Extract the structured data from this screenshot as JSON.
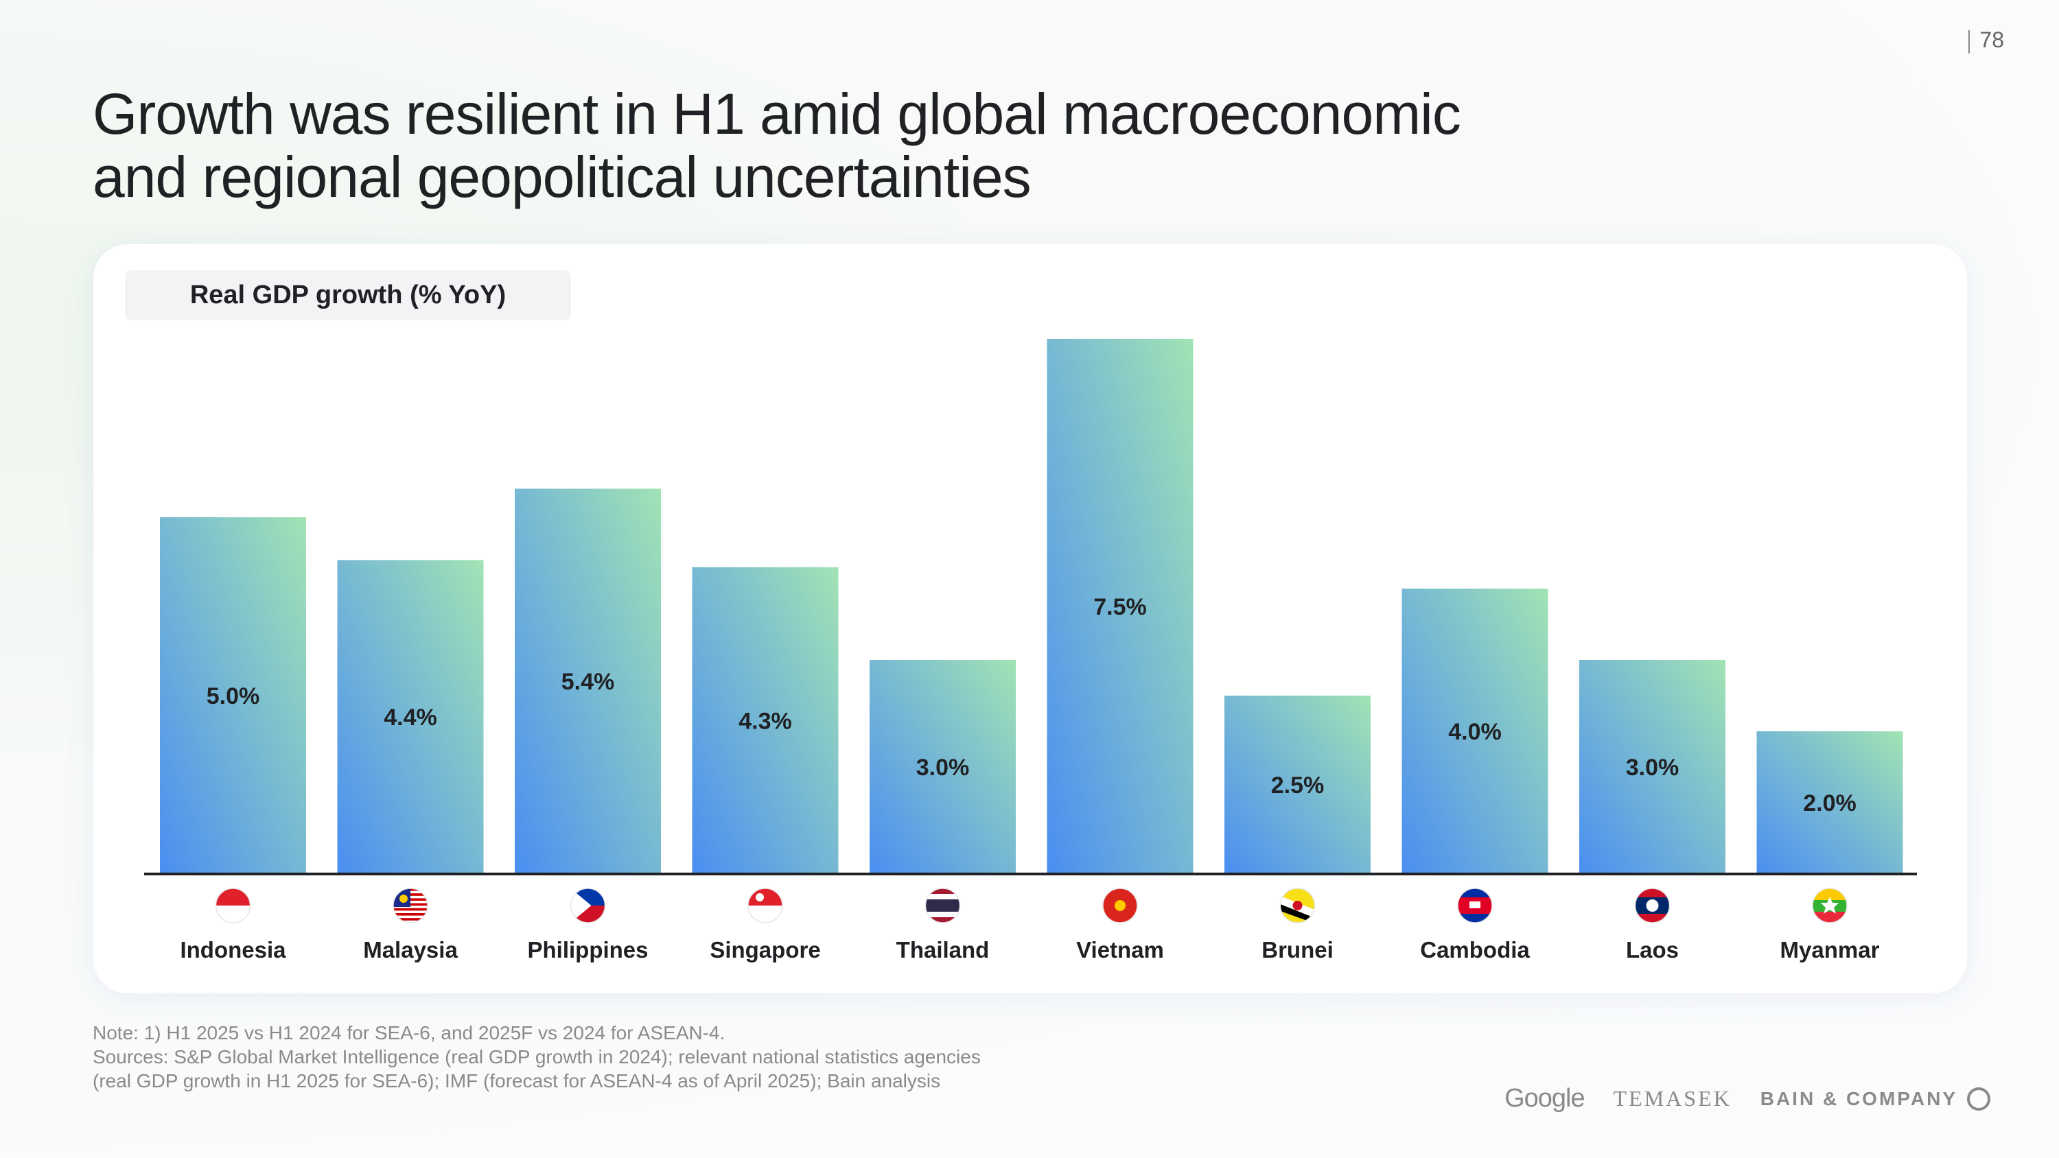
{
  "page_number": "78",
  "title_lines": [
    "Growth was resilient in H1 amid global macroeconomic",
    "and regional geopolitical uncertainties"
  ],
  "chart_data": {
    "type": "bar",
    "title": "Real GDP growth (% YoY)",
    "categories": [
      "Indonesia",
      "Malaysia",
      "Philippines",
      "Singapore",
      "Thailand",
      "Vietnam",
      "Brunei",
      "Cambodia",
      "Laos",
      "Myanmar"
    ],
    "values": [
      5.0,
      4.4,
      5.4,
      4.3,
      3.0,
      7.5,
      2.5,
      4.0,
      3.0,
      2.0
    ],
    "data_labels": [
      "5.0%",
      "4.4%",
      "5.4%",
      "4.3%",
      "3.0%",
      "7.5%",
      "2.5%",
      "4.0%",
      "3.0%",
      "2.0%"
    ],
    "flags": [
      "indonesia-flag",
      "malaysia-flag",
      "philippines-flag",
      "singapore-flag",
      "thailand-flag",
      "vietnam-flag",
      "brunei-flag",
      "cambodia-flag",
      "laos-flag",
      "myanmar-flag"
    ],
    "ylim": [
      0,
      7.5
    ],
    "grid": false,
    "colors": {
      "bar_bottom": "#4a8ef2",
      "bar_top": "#a2e3b4"
    }
  },
  "footer": {
    "note": "Note: 1) H1 2025 vs H1 2024 for SEA-6, and 2025F vs 2024 for ASEAN-4.",
    "sources_1": "Sources: S&P Global Market Intelligence (real GDP growth in 2024); relevant national statistics agencies",
    "sources_2": "(real GDP growth in H1 2025 for SEA-6); IMF (forecast for ASEAN-4 as of April 2025); Bain analysis"
  },
  "logos": {
    "google": "Google",
    "temasek": "TEMASEK",
    "bain": "BAIN & COMPANY"
  }
}
